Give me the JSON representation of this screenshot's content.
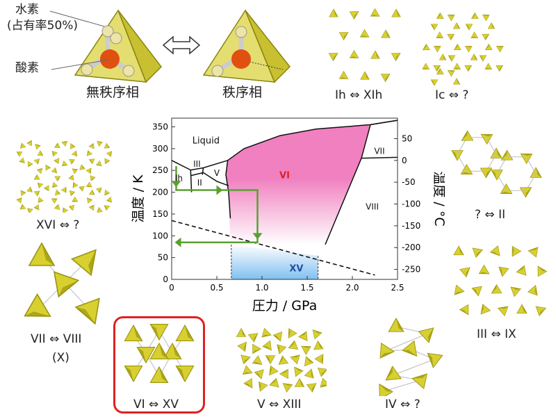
{
  "molecule": {
    "hydrogen_label": "水素",
    "occupancy_label": "(占有率50%)",
    "oxygen_label": "酸素",
    "disordered_label": "無秩序相",
    "ordered_label": "秩序相"
  },
  "transitions": {
    "ih_xih": "Ih ⇔ XIh",
    "ic_q": "Ic ⇔ ?",
    "xvi_q": "XVI ⇔ ?",
    "q_ii": "? ⇔ II",
    "vii_viii": "VII ⇔ VIII",
    "vii_viii_sub": "(X)",
    "vi_xv": "VI ⇔ XV",
    "v_xiii": "V ⇔ XIII",
    "iv_q": "IV ⇔ ?",
    "iii_ix": "III ⇔ IX"
  },
  "colors": {
    "tetra_fill": "#d8d030",
    "tetra_dark": "#9a9410",
    "oxygen": "#e05010",
    "hydrogen": "#e8e0a0",
    "phase_vi": "#f080c0",
    "phase_xv": "#80c0f0",
    "arrow_green": "#5aa030",
    "highlight_red": "#e02020",
    "vi_label": "#e02020",
    "xv_label": "#2050a0"
  },
  "chart_data": {
    "type": "phase-diagram",
    "xlabel": "圧力 / GPa",
    "ylabel": "温度 / K",
    "y2label": "温度 / °C",
    "xlim": [
      0,
      2.5
    ],
    "ylim": [
      0,
      370
    ],
    "xticks": [
      "0",
      "0.5",
      "1.0",
      "1.5",
      "2.0",
      "2.5"
    ],
    "yticks": [
      "0",
      "50",
      "100",
      "150",
      "200",
      "250",
      "300",
      "350"
    ],
    "y2ticks": [
      "50",
      "0",
      "-50",
      "-100",
      "-150",
      "-200",
      "-250"
    ],
    "phase_labels": [
      "Liquid",
      "III",
      "Ih",
      "II",
      "V",
      "VI",
      "VII",
      "VIII",
      "XV"
    ],
    "boundaries": [
      {
        "name": "Ih-Liquid",
        "points": [
          [
            0,
            273
          ],
          [
            0.21,
            251
          ]
        ]
      },
      {
        "name": "III-Liquid",
        "points": [
          [
            0.21,
            251
          ],
          [
            0.35,
            256
          ],
          [
            0.62,
            273
          ]
        ]
      },
      {
        "name": "Liquid-VI",
        "points": [
          [
            0.62,
            273
          ],
          [
            0.8,
            300
          ],
          [
            1.2,
            330
          ],
          [
            1.6,
            345
          ],
          [
            2.2,
            355
          ],
          [
            2.5,
            365
          ]
        ]
      },
      {
        "name": "VII-Liquid",
        "points": [
          [
            2.2,
            355
          ],
          [
            2.5,
            365
          ]
        ]
      },
      {
        "name": "VI-VII",
        "points": [
          [
            2.2,
            355
          ],
          [
            2.1,
            278
          ]
        ]
      },
      {
        "name": "VII-VIII",
        "points": [
          [
            2.1,
            278
          ],
          [
            2.5,
            280
          ]
        ]
      },
      {
        "name": "Ih-II",
        "points": [
          [
            0.21,
            251
          ],
          [
            0.22,
            200
          ]
        ]
      },
      {
        "name": "II-III",
        "points": [
          [
            0.21,
            238
          ],
          [
            0.35,
            245
          ]
        ]
      },
      {
        "name": "III-V",
        "points": [
          [
            0.35,
            256
          ],
          [
            0.34,
            240
          ]
        ]
      },
      {
        "name": "II-V",
        "points": [
          [
            0.35,
            245
          ],
          [
            0.5,
            225
          ],
          [
            0.63,
            215
          ]
        ]
      },
      {
        "name": "V-VI",
        "points": [
          [
            0.62,
            273
          ],
          [
            0.6,
            240
          ],
          [
            0.63,
            200
          ]
        ]
      },
      {
        "name": "II-VI",
        "points": [
          [
            0.63,
            200
          ],
          [
            0.65,
            140
          ]
        ]
      },
      {
        "name": "VI-VIII",
        "points": [
          [
            2.1,
            278
          ],
          [
            1.7,
            80
          ]
        ]
      },
      {
        "name": "order-disorder",
        "style": "dashed",
        "points": [
          [
            0,
            135
          ],
          [
            2.25,
            10
          ]
        ]
      }
    ],
    "pathway": [
      [
        0.05,
        260
      ],
      [
        0.05,
        205
      ],
      [
        0.95,
        205
      ],
      [
        0.95,
        85
      ],
      [
        0.05,
        85
      ]
    ]
  }
}
